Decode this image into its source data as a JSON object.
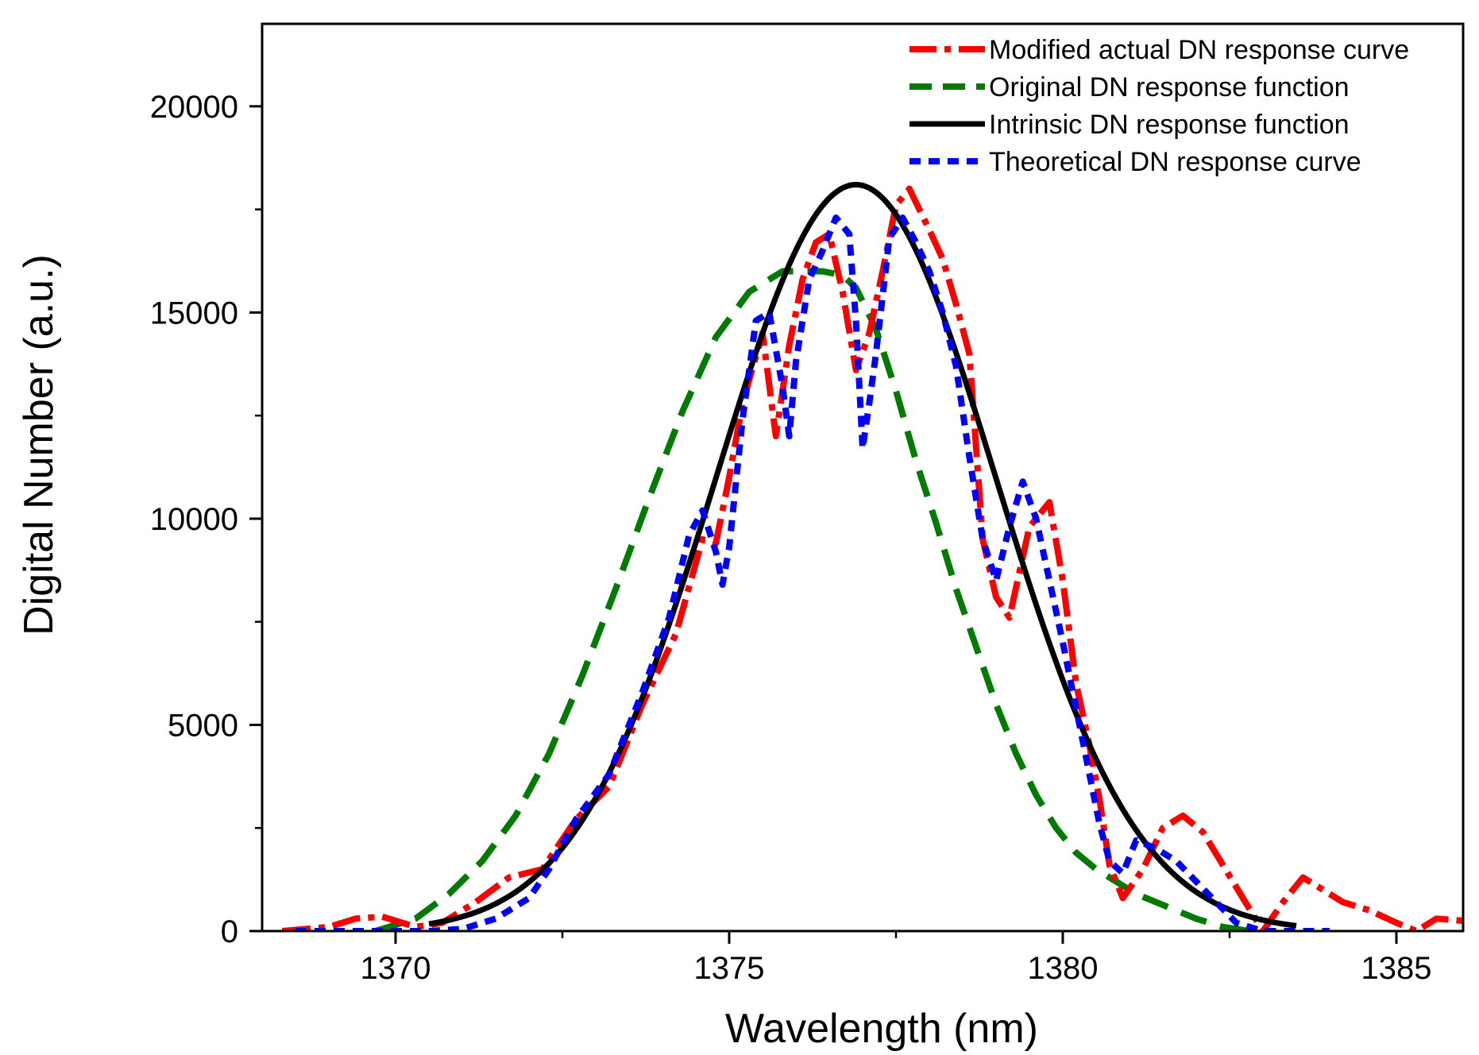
{
  "chart_data": {
    "type": "line",
    "title": "",
    "xlabel": "Wavelength (nm)",
    "ylabel": "Digital Number (a.u.)",
    "xlim": [
      1368,
      1386
    ],
    "ylim": [
      0,
      22000
    ],
    "x_ticks": [
      1370,
      1375,
      1380,
      1385
    ],
    "x_tick_labels": [
      "1370",
      "1375",
      "1380",
      "1385"
    ],
    "x_minor_ticks": [
      1372.5,
      1377.5,
      1382.5
    ],
    "y_ticks": [
      0,
      5000,
      10000,
      15000,
      20000
    ],
    "y_tick_labels": [
      "0",
      "5000",
      "10000",
      "15000",
      "20000"
    ],
    "y_minor_ticks": [
      2500,
      7500,
      12500,
      17500
    ],
    "grid": false,
    "legend_position": "top-right",
    "series": [
      {
        "name": "Modified actual DN response curve",
        "color": "#ff0000",
        "style": "dash-dot",
        "x": [
          1368.3,
          1369.0,
          1369.4,
          1369.8,
          1370.3,
          1370.7,
          1371.2,
          1371.7,
          1372.2,
          1372.7,
          1373.2,
          1373.7,
          1374.2,
          1374.6,
          1374.8,
          1375.0,
          1375.2,
          1375.5,
          1375.7,
          1375.9,
          1376.1,
          1376.3,
          1376.5,
          1376.7,
          1376.9,
          1377.1,
          1377.3,
          1377.5,
          1377.7,
          1378.0,
          1378.2,
          1378.4,
          1378.6,
          1378.8,
          1379.0,
          1379.2,
          1379.5,
          1379.8,
          1380.0,
          1380.2,
          1380.4,
          1380.55,
          1380.7,
          1380.9,
          1381.2,
          1381.5,
          1381.8,
          1382.1,
          1382.4,
          1382.7,
          1383.0,
          1383.3,
          1383.6,
          1383.9,
          1384.2,
          1384.6,
          1385.0,
          1385.3,
          1385.6,
          1386.0
        ],
        "values": [
          0,
          100,
          300,
          350,
          100,
          200,
          700,
          1300,
          1500,
          2700,
          3500,
          5500,
          7200,
          9500,
          9400,
          11000,
          12800,
          14500,
          12000,
          14200,
          15800,
          16700,
          16900,
          15500,
          13600,
          14500,
          16000,
          17600,
          18000,
          17000,
          16300,
          15200,
          14000,
          9500,
          8100,
          7600,
          9800,
          10400,
          8500,
          6000,
          4500,
          3200,
          1600,
          800,
          1500,
          2500,
          2800,
          2400,
          1600,
          800,
          0,
          700,
          1300,
          1000,
          700,
          500,
          200,
          0,
          300,
          250
        ]
      },
      {
        "name": "Original DN response function",
        "color": "#007a00",
        "style": "dash",
        "x": [
          1369.7,
          1370.3,
          1370.8,
          1371.3,
          1371.8,
          1372.3,
          1372.8,
          1373.3,
          1373.8,
          1374.3,
          1374.8,
          1375.3,
          1375.8,
          1376.1,
          1376.4,
          1376.7,
          1376.9,
          1377.2,
          1377.5,
          1377.8,
          1378.1,
          1378.4,
          1378.7,
          1379.0,
          1379.3,
          1379.6,
          1379.9,
          1380.2,
          1380.5,
          1380.8,
          1381.1,
          1381.4,
          1381.7,
          1382.0,
          1382.4,
          1382.8
        ],
        "values": [
          0,
          300,
          900,
          1700,
          2800,
          4300,
          6200,
          8300,
          10500,
          12600,
          14400,
          15500,
          16000,
          16000,
          16000,
          15900,
          15600,
          14600,
          13100,
          11400,
          9900,
          8300,
          6900,
          5500,
          4300,
          3300,
          2500,
          1900,
          1500,
          1200,
          900,
          700,
          500,
          300,
          100,
          0
        ]
      },
      {
        "name": "Intrinsic DN response function",
        "color": "#000000",
        "style": "solid",
        "gaussian": {
          "mu": 1376.9,
          "sigma": 2.1,
          "peak": 18100
        },
        "x_range": [
          1370.5,
          1383.5
        ]
      },
      {
        "name": "Theoretical DN response curve",
        "color": "#0000ff",
        "style": "short-dash",
        "x": [
          1368.5,
          1369.0,
          1369.5,
          1370.0,
          1370.5,
          1371.0,
          1371.5,
          1372.0,
          1372.3,
          1372.7,
          1373.2,
          1373.7,
          1374.1,
          1374.4,
          1374.6,
          1374.8,
          1374.9,
          1375.0,
          1375.2,
          1375.4,
          1375.6,
          1375.8,
          1375.9,
          1376.0,
          1376.2,
          1376.4,
          1376.6,
          1376.8,
          1376.9,
          1377.0,
          1377.1,
          1377.2,
          1377.4,
          1377.6,
          1377.8,
          1378.0,
          1378.2,
          1378.4,
          1378.6,
          1378.8,
          1379.0,
          1379.2,
          1379.4,
          1379.6,
          1379.8,
          1380.0,
          1380.2,
          1380.4,
          1380.55,
          1380.7,
          1380.9,
          1381.1,
          1381.4,
          1381.7,
          1382.0,
          1382.3,
          1382.6,
          1383.0,
          1383.5,
          1384.0
        ],
        "values": [
          0,
          0,
          0,
          0,
          0,
          50,
          300,
          800,
          1500,
          2700,
          3800,
          5800,
          7600,
          9600,
          10200,
          9200,
          8400,
          9300,
          12400,
          14800,
          15000,
          13200,
          12000,
          13800,
          15800,
          16500,
          17300,
          16900,
          14800,
          11700,
          12800,
          14000,
          16800,
          17300,
          16700,
          16000,
          15000,
          13700,
          11500,
          9500,
          8500,
          9800,
          10900,
          10000,
          8500,
          7000,
          5400,
          3800,
          2600,
          1700,
          1400,
          2200,
          2000,
          1700,
          1200,
          700,
          200,
          0,
          0,
          0
        ]
      }
    ]
  }
}
